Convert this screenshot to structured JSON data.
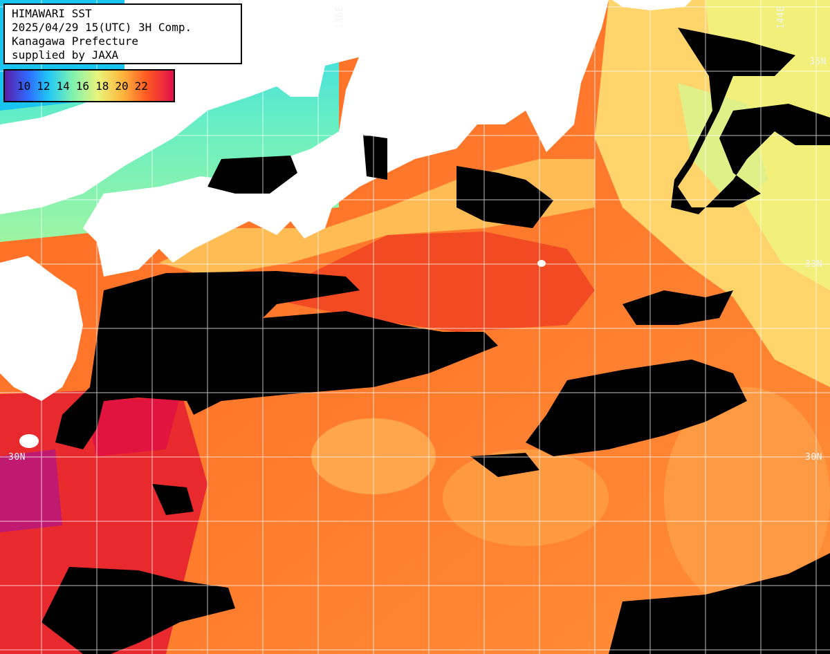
{
  "info": {
    "line1": "HIMAWARI SST",
    "line2": "2025/04/29 15(UTC) 3H Comp.",
    "line3": "Kanagawa Prefecture",
    "line4": "supplied by JAXA"
  },
  "legend": {
    "ticks": [
      "10",
      "12",
      "14",
      "16",
      "18",
      "20",
      "22"
    ]
  },
  "grid_labels": {
    "lon_136": "136E",
    "lon_144": "144E",
    "lat_30_left": "30N",
    "lat_30_right": "30N",
    "lat_33": "33N",
    "lat_35_partial": "35N"
  },
  "colors": {
    "land": "#ffffff",
    "cloud": "#000000",
    "warm": "#ff5f1f",
    "hot": "#e81a3a",
    "mild": "#ffa547",
    "cool": "#f0f07a",
    "cold": "#5ef0c0",
    "grid": "#ffffff"
  }
}
